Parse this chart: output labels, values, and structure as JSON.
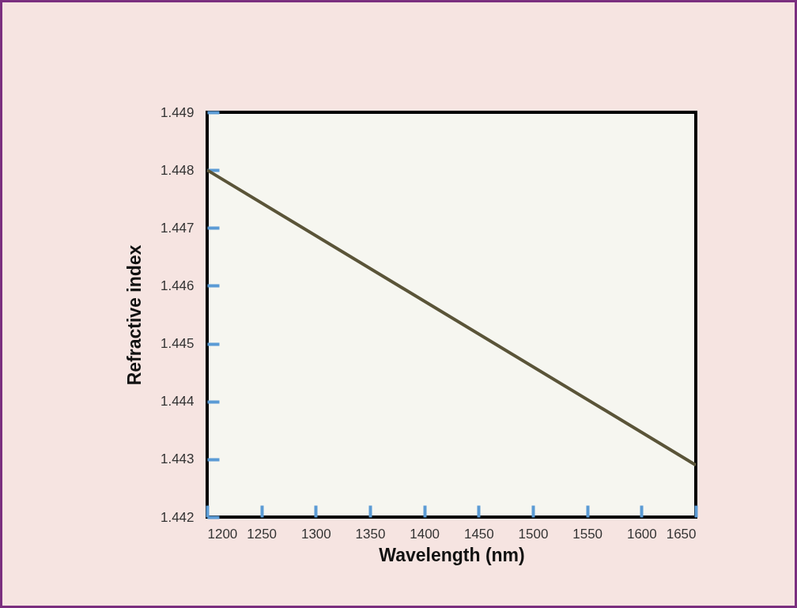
{
  "chart_data": {
    "type": "line",
    "xlabel": "Wavelength (nm)",
    "ylabel": "Refractive index",
    "x": [
      1200,
      1650
    ],
    "series": [
      {
        "color": "#5a5438",
        "values": [
          1.448,
          1.4429
        ]
      }
    ],
    "xlim": [
      1200,
      1650
    ],
    "xticks": [
      1200,
      1250,
      1300,
      1350,
      1400,
      1450,
      1500,
      1550,
      1600,
      1650
    ],
    "ylim": [
      1.442,
      1.449
    ],
    "yticks": [
      1.442,
      1.443,
      1.444,
      1.445,
      1.446,
      1.447,
      1.448,
      1.449
    ],
    "grid": false,
    "legend": false,
    "marker": "none",
    "line_style": "solid"
  }
}
